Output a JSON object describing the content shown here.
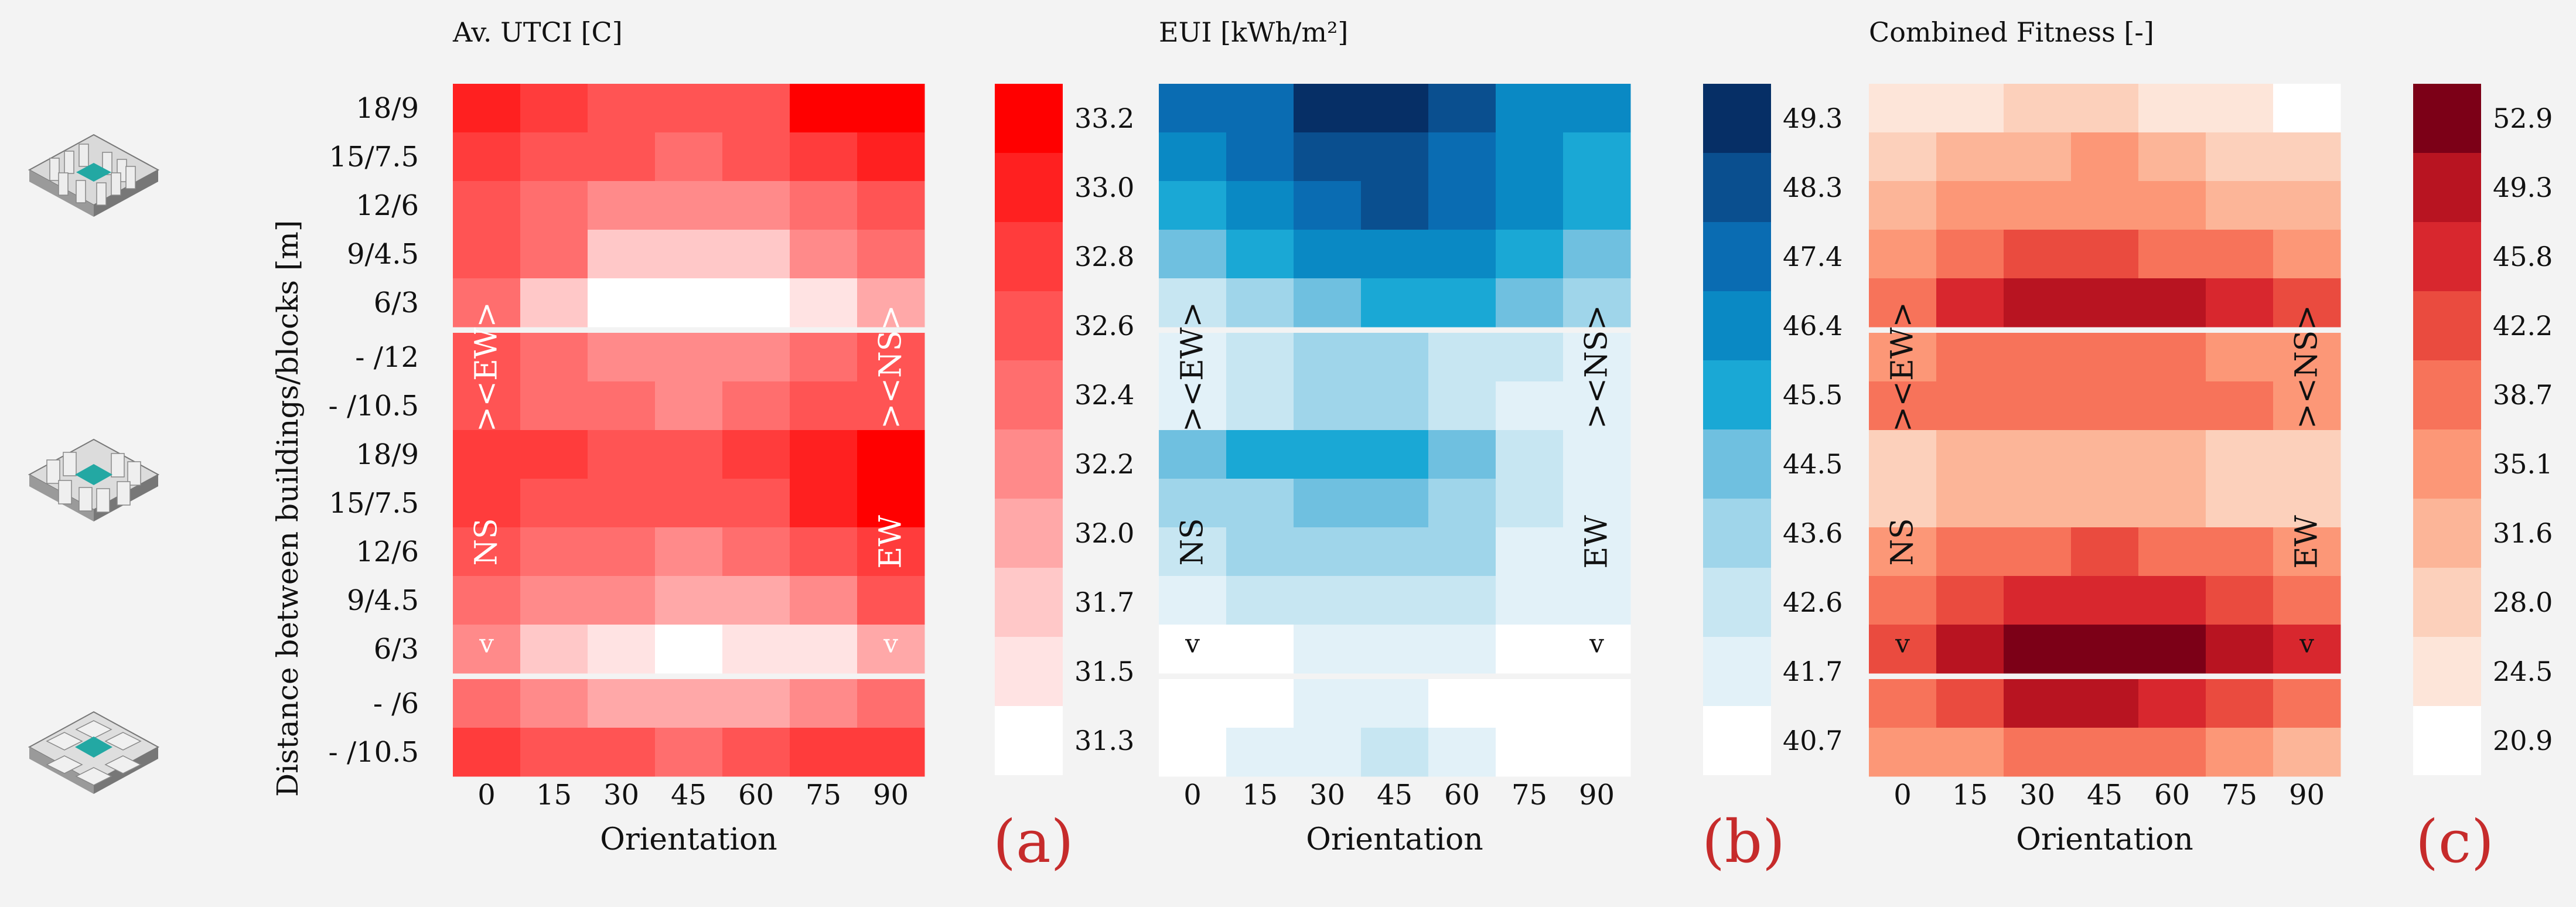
{
  "y_axis_title": "Distance between  buildings/blocks  [m]",
  "row_labels": [
    "18/9",
    "15/7.5",
    "12/6",
    "9/4.5",
    "6/3",
    " - /12",
    " - /10.5",
    "18/9",
    "15/7.5",
    "12/6",
    "9/4.5",
    "6/3",
    " - /6",
    " - /10.5"
  ],
  "group_sizes": [
    5,
    7,
    2
  ],
  "building_types": [
    "grid-block-icon",
    "courtyard-block-icon",
    "cross-block-icon"
  ],
  "chart_data": [
    {
      "type": "heatmap",
      "title": "Av. UTCI [C]",
      "xlabel": "Orientation",
      "panel_label": "(a)",
      "categories": [
        "0",
        "15",
        "30",
        "45",
        "60",
        "75",
        "90"
      ],
      "rows": [
        "18/9",
        "15/7.5",
        "12/6",
        "9/4.5",
        "6/3",
        " - /12",
        " - /10.5",
        "18/9",
        "15/7.5",
        "12/6",
        "9/4.5",
        "6/3",
        " - /6",
        " - /10.5"
      ],
      "values": [
        [
          32.9,
          32.8,
          32.6,
          32.5,
          32.6,
          33.1,
          33.2
        ],
        [
          32.8,
          32.6,
          32.5,
          32.4,
          32.5,
          32.7,
          32.9
        ],
        [
          32.6,
          32.4,
          32.2,
          32.1,
          32.2,
          32.4,
          32.6
        ],
        [
          32.5,
          32.3,
          31.8,
          31.7,
          31.8,
          32.2,
          32.4
        ],
        [
          32.3,
          31.8,
          31.4,
          31.2,
          31.4,
          31.6,
          32.0
        ],
        [
          32.5,
          32.3,
          32.2,
          32.1,
          32.2,
          32.4,
          32.5
        ],
        [
          32.6,
          32.4,
          32.3,
          32.2,
          32.3,
          32.5,
          32.6
        ],
        [
          32.7,
          32.7,
          32.6,
          32.6,
          32.7,
          32.9,
          33.2
        ],
        [
          32.8,
          32.6,
          32.5,
          32.5,
          32.6,
          32.9,
          33.2
        ],
        [
          32.6,
          32.4,
          32.3,
          32.2,
          32.3,
          32.5,
          32.7
        ],
        [
          32.4,
          32.2,
          32.1,
          31.9,
          32.0,
          32.2,
          32.5
        ],
        [
          32.2,
          31.8,
          31.5,
          31.3,
          31.5,
          31.6,
          31.9
        ],
        [
          32.4,
          32.2,
          32.0,
          31.9,
          32.0,
          32.2,
          32.4
        ],
        [
          32.8,
          32.6,
          32.5,
          32.4,
          32.5,
          32.7,
          32.8
        ]
      ],
      "annotations": [
        {
          "text": "><EW>",
          "row": 5.7,
          "col": 0,
          "rotate": true
        },
        {
          "text": "><NS>",
          "row": 5.7,
          "col": 6,
          "rotate": true
        },
        {
          "text": "NS",
          "row": 9.3,
          "col": 0,
          "rotate": true
        },
        {
          "text": "EW",
          "row": 9.3,
          "col": 6,
          "rotate": true
        },
        {
          "text": "v",
          "row": 11.4,
          "col": 0,
          "rotate": false
        },
        {
          "text": "v",
          "row": 11.4,
          "col": 6,
          "rotate": false
        }
      ],
      "colorbar_ticks": [
        "33.2",
        "33.0",
        "32.8",
        "32.6",
        "32.4",
        "32.2",
        "32.0",
        "31.7",
        "31.5",
        "31.3"
      ],
      "vmin": 31.2,
      "vmax": 33.3,
      "palette": [
        "#ffffff",
        "#ffe3e3",
        "#ffc8c8",
        "#ffa8a8",
        "#ff8a8a",
        "#ff6e6e",
        "#ff5454",
        "#ff3c3c",
        "#ff2020",
        "#ff0000"
      ],
      "annot_color": "#ffffff"
    },
    {
      "type": "heatmap",
      "title": "EUI [kWh/m²]",
      "xlabel": "Orientation",
      "panel_label": "(b)",
      "categories": [
        "0",
        "15",
        "30",
        "45",
        "60",
        "75",
        "90"
      ],
      "rows": [
        "18/9",
        "15/7.5",
        "12/6",
        "9/4.5",
        "6/3",
        " - /12",
        " - /10.5",
        "18/9",
        "15/7.5",
        "12/6",
        "9/4.5",
        "6/3",
        " - /6",
        " - /10.5"
      ],
      "values": [
        [
          47.0,
          47.6,
          48.9,
          49.3,
          48.3,
          46.8,
          46.0
        ],
        [
          46.6,
          46.9,
          48.1,
          48.4,
          47.6,
          46.5,
          45.6
        ],
        [
          45.9,
          46.2,
          47.4,
          47.8,
          47.2,
          46.2,
          45.2
        ],
        [
          44.7,
          45.1,
          46.4,
          46.8,
          46.6,
          45.6,
          44.6
        ],
        [
          43.2,
          43.6,
          44.8,
          45.6,
          45.4,
          44.6,
          43.8
        ],
        [
          42.3,
          42.5,
          43.6,
          44.0,
          43.2,
          42.4,
          41.9
        ],
        [
          42.2,
          42.4,
          43.4,
          43.8,
          43.1,
          42.3,
          41.8
        ],
        [
          45.0,
          45.4,
          45.8,
          45.9,
          44.8,
          42.5,
          41.9
        ],
        [
          43.8,
          44.0,
          44.3,
          44.3,
          43.9,
          42.6,
          41.9
        ],
        [
          43.2,
          43.4,
          43.7,
          43.8,
          43.3,
          42.2,
          41.7
        ],
        [
          42.3,
          42.6,
          43.0,
          43.2,
          42.7,
          41.9,
          41.5
        ],
        [
          40.9,
          41.2,
          41.6,
          41.8,
          41.6,
          41.2,
          41.0
        ],
        [
          40.8,
          41.2,
          41.6,
          41.8,
          41.4,
          41.0,
          40.8
        ],
        [
          41.0,
          41.6,
          42.0,
          42.4,
          41.9,
          41.3,
          41.0
        ]
      ],
      "annotations": [
        {
          "text": "><EW>",
          "row": 5.7,
          "col": 0,
          "rotate": true
        },
        {
          "text": "><NS>",
          "row": 5.7,
          "col": 6,
          "rotate": true
        },
        {
          "text": "NS",
          "row": 9.3,
          "col": 0,
          "rotate": true
        },
        {
          "text": "EW",
          "row": 9.3,
          "col": 6,
          "rotate": true
        },
        {
          "text": "v",
          "row": 11.4,
          "col": 0,
          "rotate": false
        },
        {
          "text": "v",
          "row": 11.4,
          "col": 6,
          "rotate": false
        }
      ],
      "colorbar_ticks": [
        "49.3",
        "48.3",
        "47.4",
        "46.4",
        "45.5",
        "44.5",
        "43.6",
        "42.6",
        "41.7",
        "40.7"
      ],
      "vmin": 40.5,
      "vmax": 49.6,
      "palette": [
        "#ffffff",
        "#e2f1f8",
        "#c7e6f2",
        "#9fd5ea",
        "#6fc0e0",
        "#1aa8d5",
        "#0a89c4",
        "#0a6cb2",
        "#0a4f8f",
        "#062f66"
      ],
      "annot_color": "#111111"
    },
    {
      "type": "heatmap",
      "title": "Combined Fitness [-]",
      "xlabel": "Orientation",
      "panel_label": "(c)",
      "categories": [
        "0",
        "15",
        "30",
        "45",
        "60",
        "75",
        "90"
      ],
      "rows": [
        "18/9",
        "15/7.5",
        "12/6",
        "9/4.5",
        "6/3",
        " - /12",
        " - /10.5",
        "18/9",
        "15/7.5",
        "12/6",
        "9/4.5",
        "6/3",
        " - /6",
        " - /10.5"
      ],
      "values": [
        [
          25.0,
          26.0,
          27.5,
          28.0,
          26.0,
          23.5,
          21.0
        ],
        [
          29.5,
          31.0,
          33.0,
          33.5,
          32.0,
          28.5,
          27.0
        ],
        [
          32.5,
          33.5,
          35.0,
          35.5,
          34.5,
          32.0,
          30.0
        ],
        [
          35.5,
          38.0,
          41.5,
          42.0,
          40.5,
          38.0,
          35.5
        ],
        [
          40.5,
          45.5,
          50.0,
          50.5,
          49.0,
          45.0,
          41.5
        ],
        [
          36.5,
          37.5,
          38.0,
          38.5,
          37.5,
          36.0,
          35.0
        ],
        [
          37.5,
          38.0,
          39.0,
          39.5,
          38.5,
          37.0,
          36.0
        ],
        [
          29.5,
          31.0,
          31.5,
          32.0,
          30.0,
          28.5,
          27.5
        ],
        [
          29.0,
          30.5,
          31.5,
          31.5,
          30.5,
          28.5,
          27.5
        ],
        [
          36.5,
          38.5,
          40.0,
          41.5,
          39.5,
          37.5,
          35.5
        ],
        [
          40.0,
          43.5,
          46.5,
          47.0,
          45.5,
          43.0,
          38.5
        ],
        [
          43.5,
          49.0,
          53.5,
          54.5,
          52.5,
          48.5,
          45.0
        ],
        [
          39.5,
          43.0,
          48.0,
          48.5,
          46.5,
          42.0,
          38.5
        ],
        [
          34.0,
          36.5,
          38.0,
          38.5,
          37.5,
          34.5,
          33.0
        ]
      ],
      "annotations": [
        {
          "text": "><EW>",
          "row": 5.7,
          "col": 0,
          "rotate": true
        },
        {
          "text": "><NS>",
          "row": 5.7,
          "col": 6,
          "rotate": true
        },
        {
          "text": "NS",
          "row": 9.3,
          "col": 0,
          "rotate": true
        },
        {
          "text": "EW",
          "row": 9.3,
          "col": 6,
          "rotate": true
        },
        {
          "text": "v",
          "row": 11.4,
          "col": 0,
          "rotate": false
        },
        {
          "text": "v",
          "row": 11.4,
          "col": 6,
          "rotate": false
        }
      ],
      "colorbar_ticks": [
        "52.9",
        "49.3",
        "45.8",
        "42.2",
        "38.7",
        "35.1",
        "31.6",
        "28.0",
        "24.5",
        "20.9"
      ],
      "vmin": 19.0,
      "vmax": 55.0,
      "palette": [
        "#ffffff",
        "#fde5d9",
        "#fcd0bb",
        "#fcb598",
        "#fc9777",
        "#f7735a",
        "#ea4b3f",
        "#d8272e",
        "#b81421",
        "#7c0017"
      ],
      "annot_color": "#111111"
    }
  ]
}
